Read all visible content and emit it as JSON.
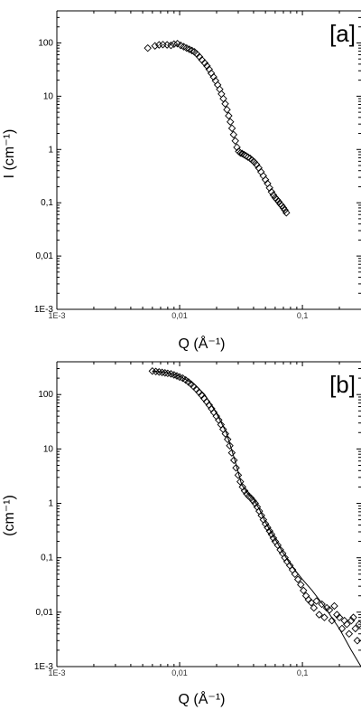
{
  "chart_data": [
    {
      "type": "scatter",
      "panel_label": "[a]",
      "xlabel": "Q (Å⁻¹)",
      "ylabel": "I (cm⁻¹)",
      "x_scale": "log",
      "y_scale": "log",
      "xlim": [
        0.001,
        0.3
      ],
      "ylim": [
        0.001,
        400
      ],
      "x_tick_labels": [
        "1E-3",
        "0,01",
        "0,1"
      ],
      "y_tick_labels": [
        "1E-3",
        "0,01",
        "0,1",
        "1",
        "10",
        "100"
      ],
      "grid": false,
      "marker": "diamond",
      "series": [
        {
          "x": [
            0.0055,
            0.0063,
            0.0068,
            0.0073,
            0.0079,
            0.0085,
            0.009,
            0.0096,
            0.0102,
            0.0108,
            0.0114,
            0.012,
            0.0126,
            0.0132,
            0.0138,
            0.0145,
            0.0152,
            0.016,
            0.0167,
            0.0174,
            0.0181,
            0.0189,
            0.0196,
            0.0204,
            0.0212,
            0.0219,
            0.0227,
            0.0235,
            0.0243,
            0.0251,
            0.0259,
            0.0267,
            0.0275,
            0.0284,
            0.0293,
            0.0303,
            0.0313,
            0.0323,
            0.0335,
            0.0347,
            0.036,
            0.0375,
            0.039,
            0.0406,
            0.0423,
            0.0441,
            0.046,
            0.048,
            0.05,
            0.052,
            0.054,
            0.056,
            0.058,
            0.06,
            0.062,
            0.064,
            0.066,
            0.068,
            0.07,
            0.072,
            0.074
          ],
          "y": [
            80,
            88,
            92,
            93,
            92,
            90,
            95,
            97,
            90,
            85,
            80,
            76,
            72,
            68,
            62,
            55,
            48,
            42,
            37,
            32,
            27,
            23,
            19.5,
            16.3,
            13.5,
            11,
            9,
            7.2,
            5.6,
            4.3,
            3.3,
            2.5,
            1.9,
            1.45,
            1.1,
            0.92,
            0.86,
            0.84,
            0.8,
            0.76,
            0.72,
            0.68,
            0.63,
            0.58,
            0.52,
            0.45,
            0.38,
            0.32,
            0.27,
            0.23,
            0.19,
            0.16,
            0.14,
            0.125,
            0.115,
            0.105,
            0.095,
            0.088,
            0.08,
            0.073,
            0.065
          ]
        }
      ]
    },
    {
      "type": "scatter",
      "panel_label": "[b]",
      "xlabel": "Q (Å⁻¹)",
      "ylabel": "(cm⁻¹)",
      "x_scale": "log",
      "y_scale": "log",
      "xlim": [
        0.001,
        0.3
      ],
      "ylim": [
        0.001,
        400
      ],
      "x_tick_labels": [
        "1E-3",
        "0,01",
        "0,1"
      ],
      "y_tick_labels": [
        "1E-3",
        "0,01",
        "0,1",
        "1",
        "10",
        "100"
      ],
      "grid": false,
      "marker": "diamond",
      "series": [
        {
          "x": [
            0.006,
            0.0064,
            0.0068,
            0.0072,
            0.0076,
            0.008,
            0.0085,
            0.009,
            0.0095,
            0.01,
            0.0106,
            0.0112,
            0.0118,
            0.0124,
            0.013,
            0.0137,
            0.0144,
            0.0151,
            0.0158,
            0.0166,
            0.0174,
            0.0182,
            0.019,
            0.0199,
            0.0208,
            0.0217,
            0.0226,
            0.0236,
            0.0246,
            0.0256,
            0.0266,
            0.0277,
            0.0288,
            0.03,
            0.0312,
            0.0325,
            0.0338,
            0.0352,
            0.0366,
            0.0381,
            0.0396,
            0.0412,
            0.0428,
            0.0445,
            0.0463,
            0.0481,
            0.05,
            0.052,
            0.054,
            0.056,
            0.058,
            0.06,
            0.063,
            0.066,
            0.069,
            0.072,
            0.075,
            0.079,
            0.083,
            0.087,
            0.092,
            0.097,
            0.102,
            0.107,
            0.112,
            0.118,
            0.124,
            0.13,
            0.137,
            0.144,
            0.151,
            0.158,
            0.166,
            0.174,
            0.182,
            0.191,
            0.2,
            0.21,
            0.22,
            0.23,
            0.24,
            0.25,
            0.26,
            0.27,
            0.28,
            0.29
          ],
          "y": [
            270,
            265,
            260,
            255,
            250,
            245,
            240,
            230,
            220,
            210,
            200,
            185,
            170,
            155,
            140,
            125,
            110,
            97,
            85,
            74,
            64,
            55,
            47,
            40,
            34,
            28,
            23,
            19,
            15,
            11.5,
            8.5,
            6.2,
            4.5,
            3.3,
            2.5,
            2,
            1.7,
            1.5,
            1.35,
            1.25,
            1.12,
            1,
            0.86,
            0.72,
            0.6,
            0.5,
            0.42,
            0.36,
            0.31,
            0.27,
            0.23,
            0.2,
            0.17,
            0.14,
            0.12,
            0.1,
            0.085,
            0.072,
            0.06,
            0.05,
            0.04,
            0.032,
            0.025,
            0.02,
            0.017,
            0.015,
            0.012,
            0.016,
            0.009,
            0.014,
            0.008,
            0.012,
            0.011,
            0.007,
            0.013,
            0.009,
            0.008,
            0.005,
            0.007,
            0.006,
            0.004,
            0.007,
            0.008,
            0.005,
            0.003,
            0.006
          ]
        }
      ],
      "fit_line": {
        "x": [
          0.006,
          0.008,
          0.01,
          0.013,
          0.016,
          0.02,
          0.024,
          0.028,
          0.032,
          0.036,
          0.04,
          0.045,
          0.05,
          0.06,
          0.07,
          0.08,
          0.1,
          0.12,
          0.15,
          0.2,
          0.25,
          0.3
        ],
        "y": [
          270,
          250,
          215,
          160,
          100,
          45,
          20,
          6.5,
          2.2,
          1.5,
          1.2,
          0.75,
          0.45,
          0.22,
          0.12,
          0.075,
          0.04,
          0.025,
          0.013,
          0.005,
          0.002,
          0.0008
        ]
      }
    }
  ]
}
